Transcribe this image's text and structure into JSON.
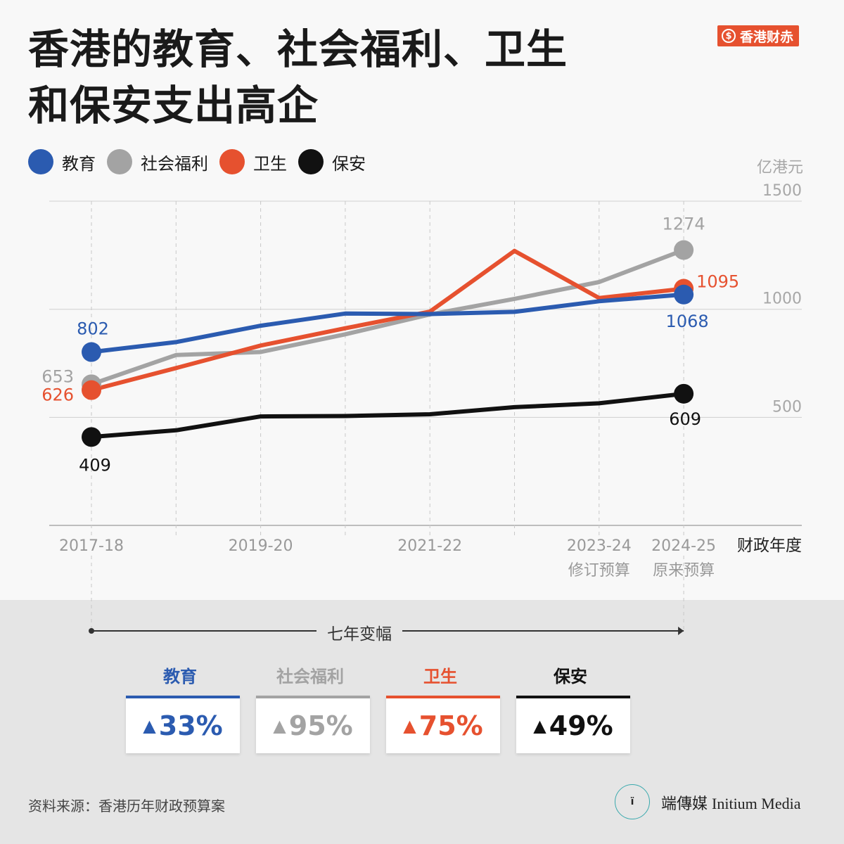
{
  "title": [
    "香港的教育、社会福利、卫生",
    "和保安支出高企"
  ],
  "brand_tag": {
    "icon": "dollar-icon",
    "icon_glyph": "$",
    "label": "香港财赤"
  },
  "legend": [
    {
      "label": "教育",
      "color": "#2b5bb0"
    },
    {
      "label": "社会福利",
      "color": "#a3a3a3"
    },
    {
      "label": "卫生",
      "color": "#e6512f"
    },
    {
      "label": "保安",
      "color": "#111111"
    }
  ],
  "chart_data": {
    "type": "line",
    "title": "香港的教育、社会福利、卫生和保安支出高企",
    "xlabel": "财政年度",
    "ylabel": "亿港元",
    "ylim": [
      0,
      1500
    ],
    "yticks": [
      500,
      1000,
      1500
    ],
    "grid": true,
    "legend_position": "top-left",
    "x": [
      "2017-18",
      "2018-19",
      "2019-20",
      "2020-21",
      "2021-22",
      "2022-23",
      "2023-24",
      "2024-25"
    ],
    "x_tick_labels": [
      {
        "x": "2017-18",
        "lines": [
          "2017-18"
        ]
      },
      {
        "x": "2019-20",
        "lines": [
          "2019-20"
        ]
      },
      {
        "x": "2021-22",
        "lines": [
          "2021-22"
        ]
      },
      {
        "x": "2023-24",
        "lines": [
          "2023-24",
          "修订预算"
        ]
      },
      {
        "x": "2024-25",
        "lines": [
          "2024-25",
          "原来预算"
        ]
      }
    ],
    "series": [
      {
        "name": "社会福利",
        "color": "#a3a3a3",
        "values": [
          653,
          788,
          802,
          884,
          976,
          1048,
          1126,
          1274
        ]
      },
      {
        "name": "卫生",
        "color": "#e6512f",
        "values": [
          626,
          728,
          832,
          912,
          989,
          1270,
          1052,
          1095
        ]
      },
      {
        "name": "教育",
        "color": "#2b5bb0",
        "values": [
          802,
          848,
          924,
          980,
          978,
          988,
          1037,
          1068
        ]
      },
      {
        "name": "保安",
        "color": "#111111",
        "values": [
          409,
          440,
          504,
          506,
          514,
          547,
          565,
          609
        ]
      }
    ],
    "data_labels": [
      {
        "series": "社会福利",
        "x": "2017-18",
        "text": "653"
      },
      {
        "series": "社会福利",
        "x": "2024-25",
        "text": "1274"
      },
      {
        "series": "卫生",
        "x": "2017-18",
        "text": "626"
      },
      {
        "series": "卫生",
        "x": "2024-25",
        "text": "1095"
      },
      {
        "series": "教育",
        "x": "2017-18",
        "text": "802"
      },
      {
        "series": "教育",
        "x": "2024-25",
        "text": "1068"
      },
      {
        "series": "保安",
        "x": "2017-18",
        "text": "409"
      },
      {
        "series": "保安",
        "x": "2024-25",
        "text": "609"
      }
    ]
  },
  "change_section": {
    "label": "七年变幅",
    "items": [
      {
        "name": "教育",
        "value": "33%",
        "color": "#2b5bb0"
      },
      {
        "name": "社会福利",
        "value": "95%",
        "color": "#a3a3a3"
      },
      {
        "name": "卫生",
        "value": "75%",
        "color": "#e6512f"
      },
      {
        "name": "保安",
        "value": "49%",
        "color": "#111111"
      }
    ],
    "arrow_glyph": "▲"
  },
  "source": "资料来源：香港历年财政预算案",
  "publisher": {
    "logo_text": "端傳媒",
    "logo_sub": "Initium Media",
    "icon": "initium-logo-icon",
    "icon_glyph": "ï"
  }
}
